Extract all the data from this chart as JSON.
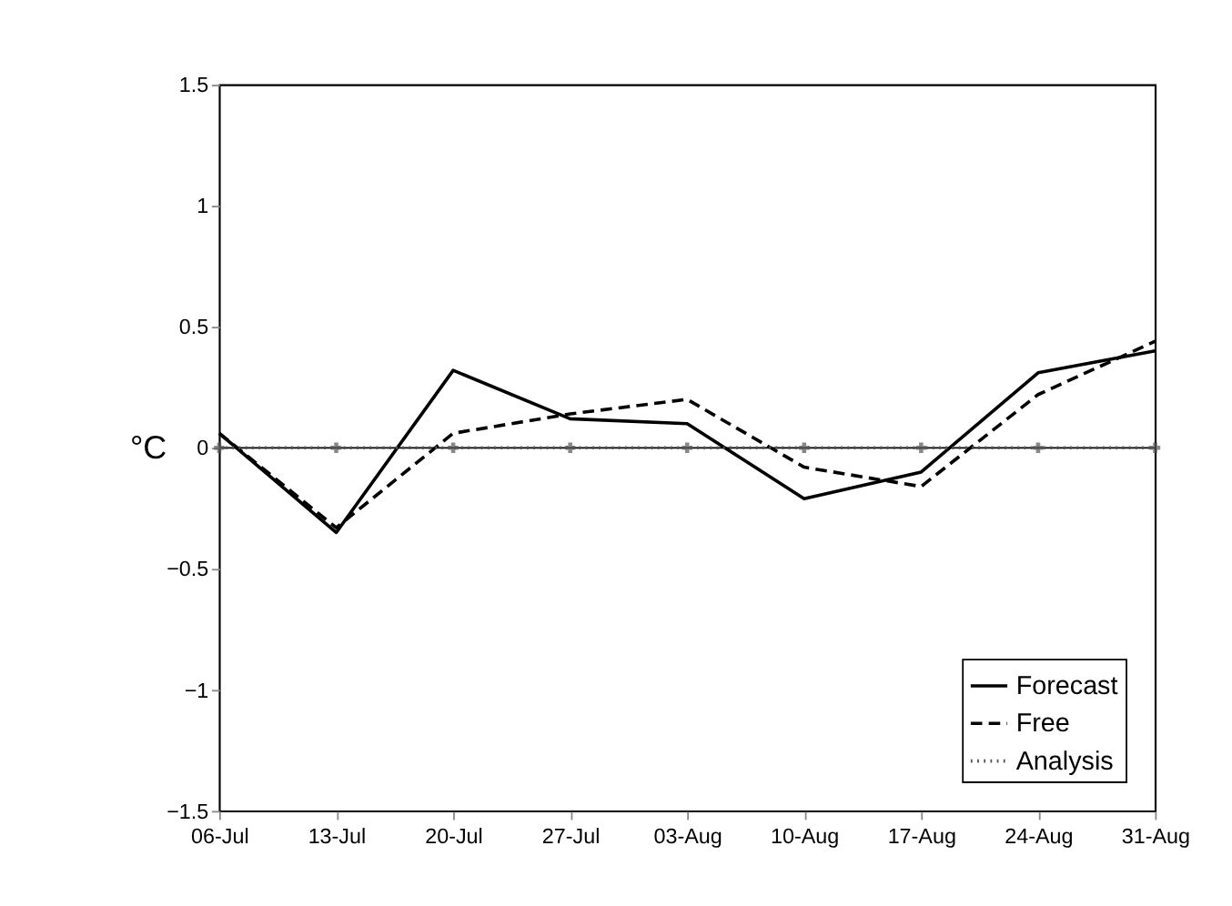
{
  "chart_data": {
    "type": "line",
    "ylabel": "°C",
    "categories": [
      "06-Jul",
      "13-Jul",
      "20-Jul",
      "27-Jul",
      "03-Aug",
      "10-Aug",
      "17-Aug",
      "24-Aug",
      "31-Aug"
    ],
    "series": [
      {
        "name": "Forecast",
        "color": "#000000",
        "line_style": "solid",
        "marker": "none",
        "values": [
          0.06,
          -0.35,
          0.32,
          0.12,
          0.1,
          -0.21,
          -0.1,
          0.31,
          0.4
        ]
      },
      {
        "name": "Free",
        "color": "#000000",
        "line_style": "dashed",
        "marker": "none",
        "values": [
          0.06,
          -0.33,
          0.06,
          0.14,
          0.2,
          -0.08,
          -0.16,
          0.22,
          0.44
        ]
      },
      {
        "name": "Analysis",
        "color": "#555555",
        "line_style": "dotted",
        "marker": "cross",
        "values": [
          0,
          0,
          0,
          0,
          0,
          0,
          0,
          0,
          0
        ]
      }
    ],
    "ylim": [
      -1.5,
      1.5
    ],
    "yticks": [
      -1.5,
      -1,
      -0.5,
      0,
      0.5,
      1,
      1.5
    ],
    "ref_lines": [
      {
        "axis": "y",
        "value": 0,
        "color": "#000000"
      }
    ],
    "grid": false,
    "legend": "bottom right"
  }
}
